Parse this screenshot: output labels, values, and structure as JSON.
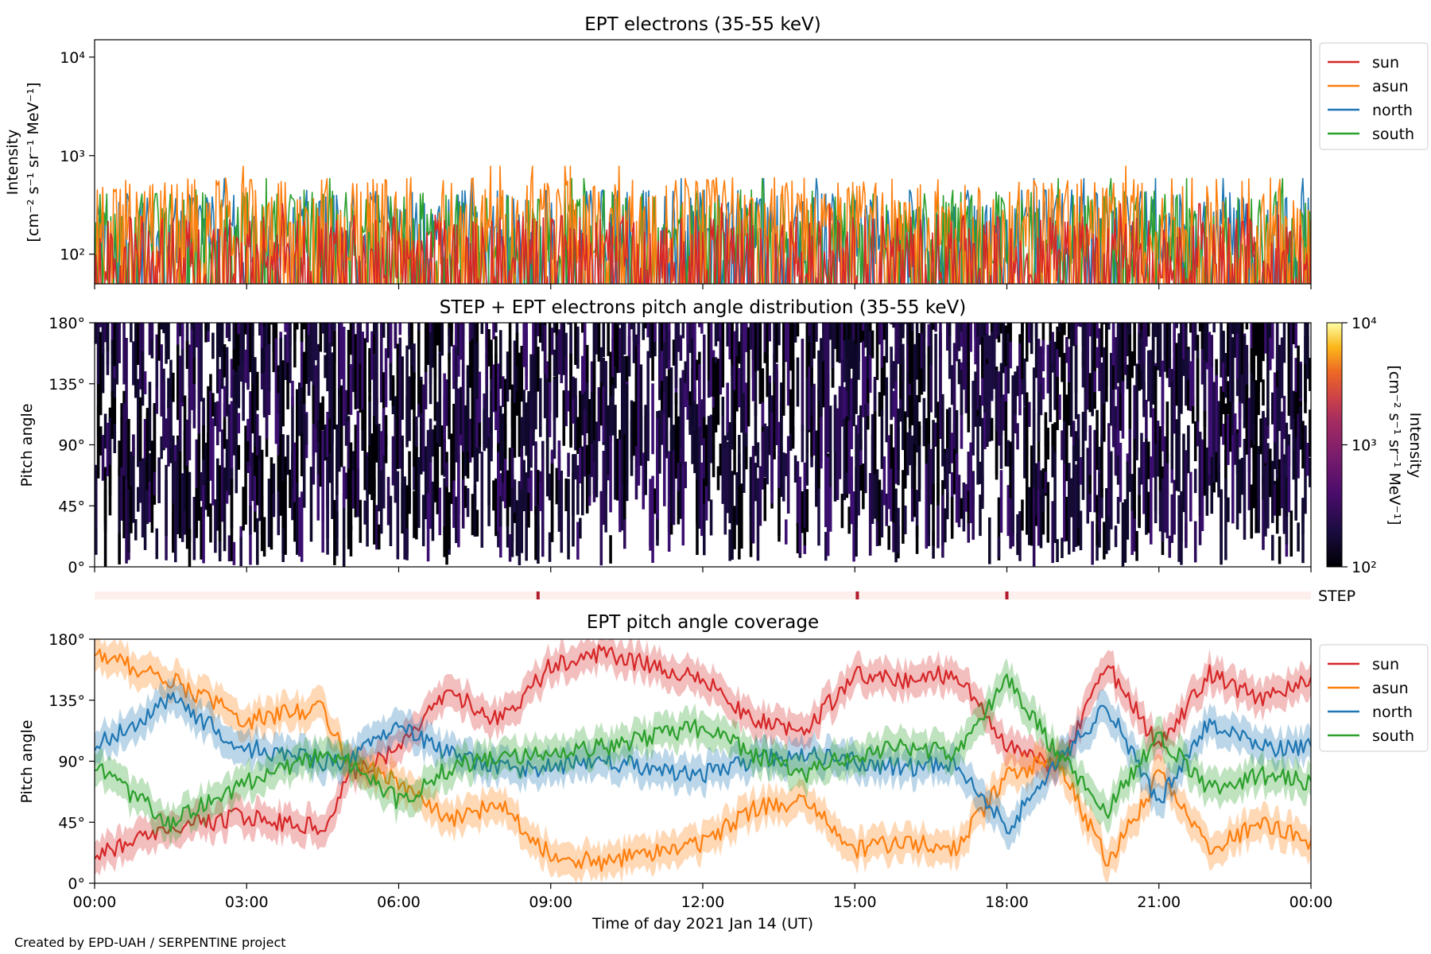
{
  "figure": {
    "credit": "Created by EPD-UAH / SERPENTINE project",
    "xlabel": "Time of day 2021 Jan 14 (UT)",
    "xticks": [
      "00:00",
      "03:00",
      "06:00",
      "09:00",
      "12:00",
      "15:00",
      "18:00",
      "21:00",
      "00:00"
    ]
  },
  "chart_data": [
    {
      "type": "line",
      "title": "EPT electrons (35-55 keV)",
      "ylabel": "Intensity",
      "yunit": "[cm⁻² s⁻¹ sr⁻¹ MeV⁻¹]",
      "yscale": "log",
      "ylim": [
        50,
        15000
      ],
      "yticks": [
        "10²",
        "10³",
        "10⁴"
      ],
      "ytick_values": [
        100,
        1000,
        10000
      ],
      "xlim_hours": [
        0,
        24
      ],
      "legend": "upper-right-outside",
      "series": [
        {
          "name": "sun",
          "color": "#d62728",
          "typical_range": [
            50,
            250
          ]
        },
        {
          "name": "asun",
          "color": "#ff7f0e",
          "typical_range": [
            80,
            600
          ]
        },
        {
          "name": "north",
          "color": "#1f77b4",
          "typical_range": [
            80,
            450
          ]
        },
        {
          "name": "south",
          "color": "#2ca02c",
          "typical_range": [
            80,
            450
          ]
        }
      ]
    },
    {
      "type": "heatmap",
      "title": "STEP + EPT electrons pitch angle distribution (35-55 keV)",
      "ylabel": "Pitch angle",
      "ylim": [
        0,
        180
      ],
      "yticks": [
        "0°",
        "45°",
        "90°",
        "135°",
        "180°"
      ],
      "ytick_values": [
        0,
        45,
        90,
        135,
        180
      ],
      "xlim_hours": [
        0,
        24
      ],
      "colorbar": {
        "label": "Intensity",
        "unit": "[cm⁻² s⁻¹ sr⁻¹ MeV⁻¹]",
        "scale": "log",
        "range": [
          100,
          10000
        ],
        "ticks": [
          "10²",
          "10³",
          "10⁴"
        ],
        "colormap": "inferno"
      }
    },
    {
      "type": "bar",
      "label": "STEP",
      "band_color": "#fdf0ec",
      "marker_color": "#b2182b",
      "marker_hours": [
        8.75,
        15.05,
        18.0
      ]
    },
    {
      "type": "area",
      "title": "EPT pitch angle coverage",
      "ylabel": "Pitch angle",
      "ylim": [
        0,
        180
      ],
      "yticks": [
        "0°",
        "45°",
        "90°",
        "135°",
        "180°"
      ],
      "ytick_values": [
        0,
        45,
        90,
        135,
        180
      ],
      "xlim_hours": [
        0,
        24
      ],
      "legend": "upper-right-outside",
      "series": [
        {
          "name": "sun",
          "color": "#d62728",
          "x": [
            0,
            1.5,
            3,
            4.5,
            5,
            6,
            7,
            8,
            9,
            10,
            12,
            13,
            14,
            15,
            16,
            17,
            18,
            19,
            20,
            21,
            22,
            23,
            24
          ],
          "y": [
            20,
            40,
            50,
            40,
            80,
            100,
            140,
            120,
            160,
            170,
            150,
            120,
            110,
            155,
            150,
            155,
            100,
            85,
            160,
            100,
            155,
            135,
            150
          ]
        },
        {
          "name": "asun",
          "color": "#ff7f0e",
          "x": [
            0,
            1.5,
            3,
            4.5,
            5,
            6,
            7,
            8,
            9,
            10,
            12,
            13,
            14,
            15,
            16,
            17,
            18,
            19,
            20,
            21,
            22,
            23,
            24
          ],
          "y": [
            170,
            150,
            120,
            130,
            90,
            75,
            45,
            60,
            20,
            15,
            30,
            55,
            60,
            25,
            30,
            25,
            80,
            90,
            15,
            80,
            25,
            45,
            30
          ]
        },
        {
          "name": "north",
          "color": "#1f77b4",
          "x": [
            0,
            1.5,
            3,
            4.5,
            5,
            6,
            7,
            8,
            9,
            10,
            12,
            13,
            14,
            15,
            16,
            17,
            18,
            19,
            20,
            21,
            22,
            23,
            24
          ],
          "y": [
            100,
            135,
            100,
            90,
            90,
            115,
            95,
            85,
            85,
            90,
            80,
            90,
            95,
            90,
            85,
            90,
            40,
            90,
            130,
            60,
            120,
            100,
            100
          ]
        },
        {
          "name": "south",
          "color": "#2ca02c",
          "x": [
            0,
            1.5,
            3,
            4.5,
            5,
            6,
            7,
            8,
            9,
            10,
            12,
            13,
            14,
            15,
            16,
            17,
            18,
            19,
            20,
            21,
            22,
            23,
            24
          ],
          "y": [
            85,
            45,
            75,
            95,
            90,
            60,
            85,
            95,
            95,
            100,
            115,
            95,
            80,
            95,
            100,
            95,
            150,
            95,
            55,
            110,
            70,
            80,
            75
          ]
        }
      ]
    }
  ]
}
